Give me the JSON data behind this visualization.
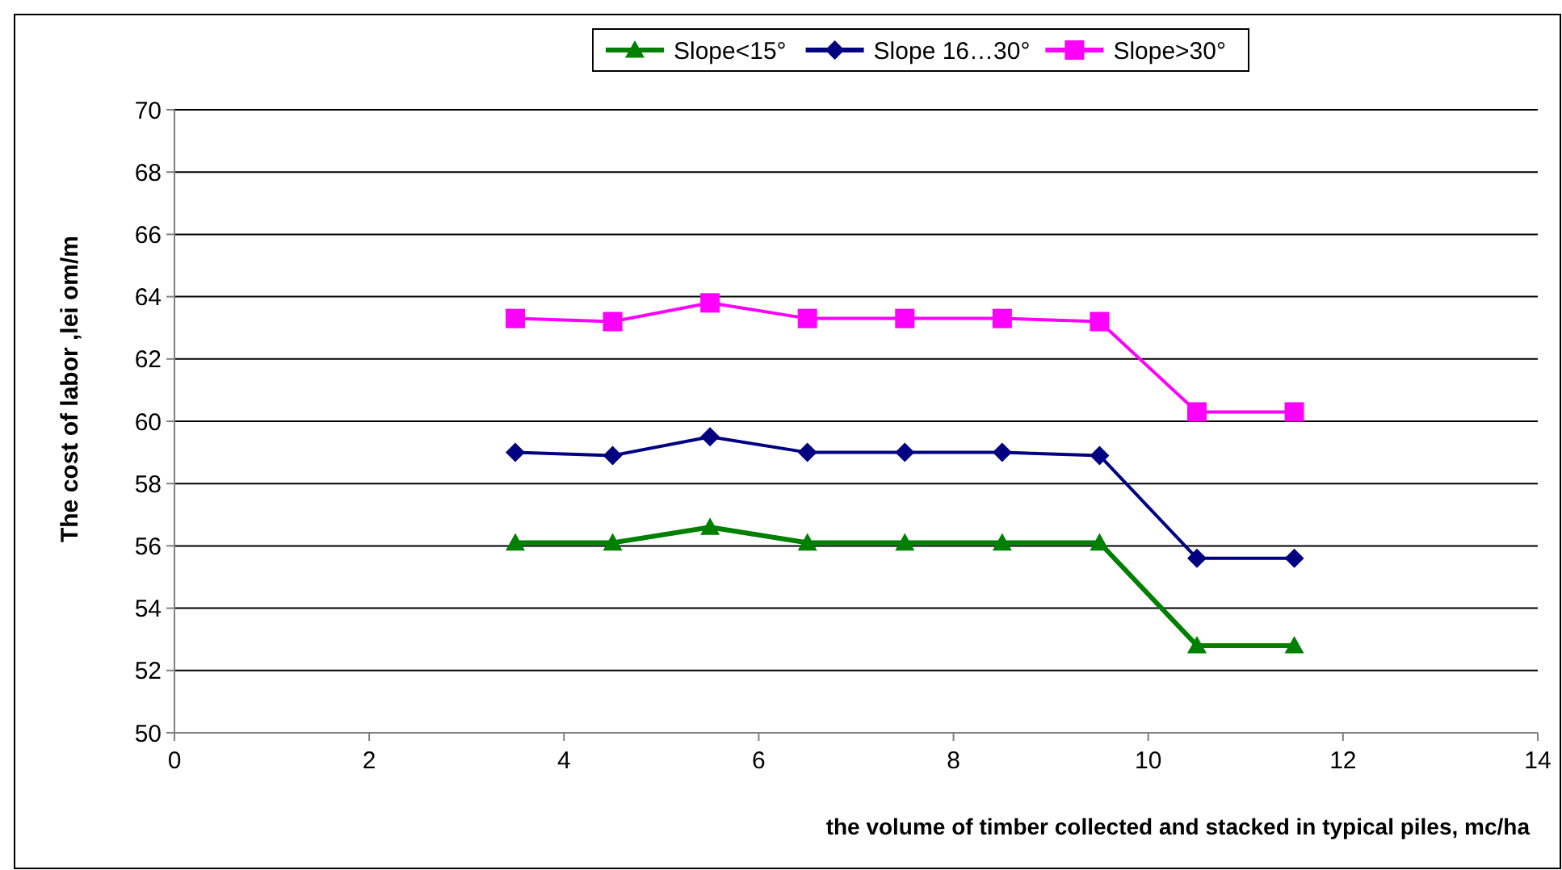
{
  "chart_data": {
    "type": "line",
    "xlabel": "the volume of timber collected and  stacked in typical piles, mc/ha",
    "ylabel": "The cost of labor ,lei om/m",
    "x": [
      3.5,
      4.5,
      5.5,
      6.5,
      7.5,
      8.5,
      9.5,
      10.5,
      11.5
    ],
    "series": [
      {
        "name": "Slope<15°",
        "color": "#008000",
        "marker": "triangle",
        "values": [
          56.1,
          56.1,
          56.6,
          56.1,
          56.1,
          56.1,
          56.1,
          52.8,
          52.8
        ]
      },
      {
        "name": "Slope 16…30°",
        "color": "#000080",
        "marker": "diamond",
        "values": [
          59.0,
          58.9,
          59.5,
          59.0,
          59.0,
          59.0,
          58.9,
          55.6,
          55.6
        ]
      },
      {
        "name": "Slope>30°",
        "color": "#ff00ff",
        "marker": "square",
        "values": [
          63.3,
          63.2,
          63.8,
          63.3,
          63.3,
          63.3,
          63.2,
          60.3,
          60.3
        ]
      }
    ],
    "xlim": [
      0,
      14
    ],
    "xticks": [
      0,
      2,
      4,
      6,
      8,
      10,
      12,
      14
    ],
    "ylim": [
      50,
      70
    ],
    "yticks": [
      50,
      52,
      54,
      56,
      58,
      60,
      62,
      64,
      66,
      68,
      70
    ],
    "grid": "y",
    "legend": "top"
  }
}
